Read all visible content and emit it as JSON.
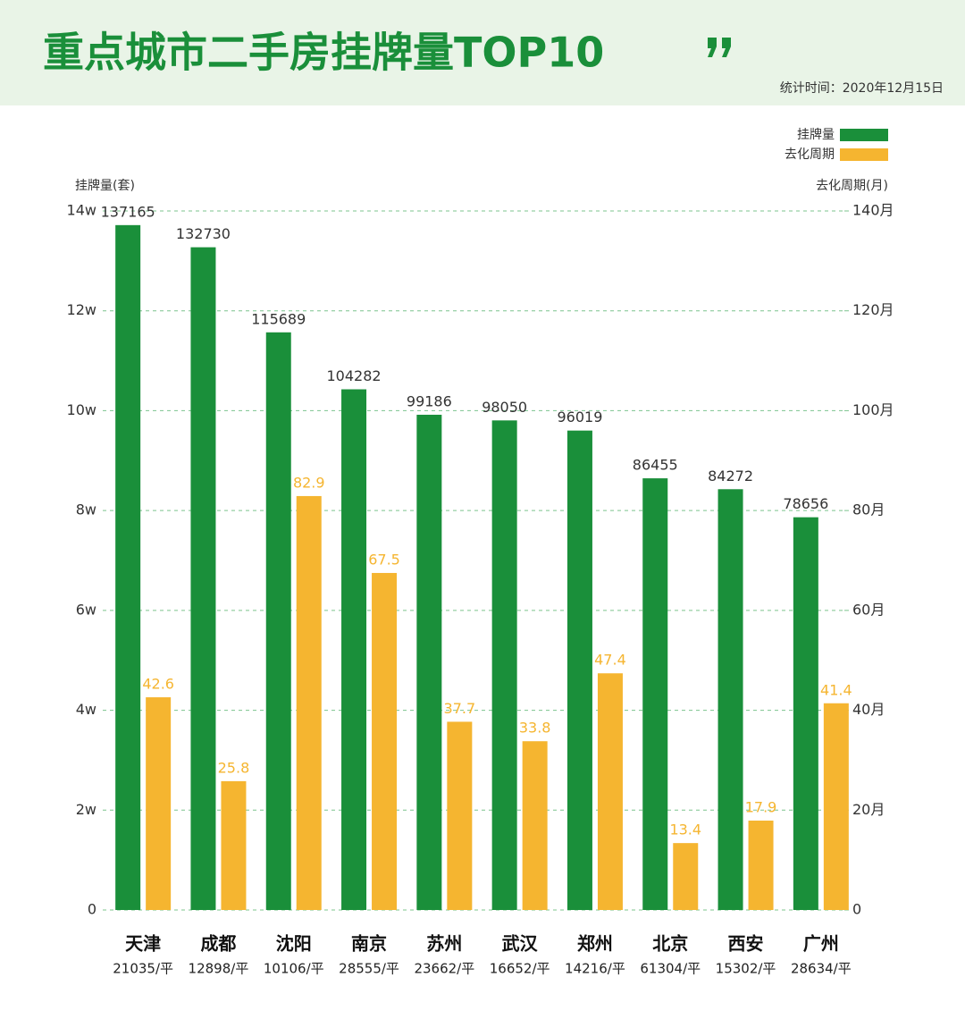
{
  "chart_data": {
    "type": "bar",
    "title": "重点城市二手房挂牌量TOP10",
    "subtitle": "统计时间：2020年12月15日",
    "y_label": "挂牌量(套)",
    "y2_label": "去化周期(月)",
    "categories": [
      "天津",
      "成都",
      "沈阳",
      "南京",
      "苏州",
      "武汉",
      "郑州",
      "北京",
      "西安",
      "广州"
    ],
    "category_notes": [
      "21035/平",
      "12898/平",
      "10106/平",
      "28555/平",
      "23662/平",
      "16652/平",
      "14216/平",
      "61304/平",
      "15302/平",
      "28634/平"
    ],
    "series": [
      {
        "name": "挂牌量",
        "color": "#1a8f3a",
        "values": [
          137165,
          132730,
          115689,
          104282,
          99186,
          98050,
          96019,
          86455,
          84272,
          78656
        ]
      },
      {
        "name": "去化周期",
        "color": "#f5b530",
        "axis": "y2",
        "values": [
          42.6,
          25.8,
          82.9,
          67.5,
          37.7,
          33.8,
          47.4,
          13.4,
          17.9,
          41.4
        ]
      }
    ],
    "ylim": [
      0,
      140000
    ],
    "yticks": [
      0,
      {
        "value": 20000,
        "label": "2w"
      },
      {
        "value": 40000,
        "label": "4w"
      },
      {
        "value": 60000,
        "label": "6w"
      },
      {
        "value": 80000,
        "label": "8w"
      },
      {
        "value": 100000,
        "label": "10w"
      },
      {
        "value": 120000,
        "label": "12w"
      },
      {
        "value": 140000,
        "label": "14w"
      }
    ],
    "y2lim": [
      0,
      140
    ],
    "y2ticks": [
      0,
      {
        "value": 20,
        "label": "20月"
      },
      {
        "value": 40,
        "label": "40月"
      },
      {
        "value": 60,
        "label": "60月"
      },
      {
        "value": 80,
        "label": "80月"
      },
      {
        "value": 100,
        "label": "100月"
      },
      {
        "value": 120,
        "label": "120月"
      },
      {
        "value": 140,
        "label": "140月"
      }
    ],
    "grid": true,
    "legend": "top-right"
  }
}
